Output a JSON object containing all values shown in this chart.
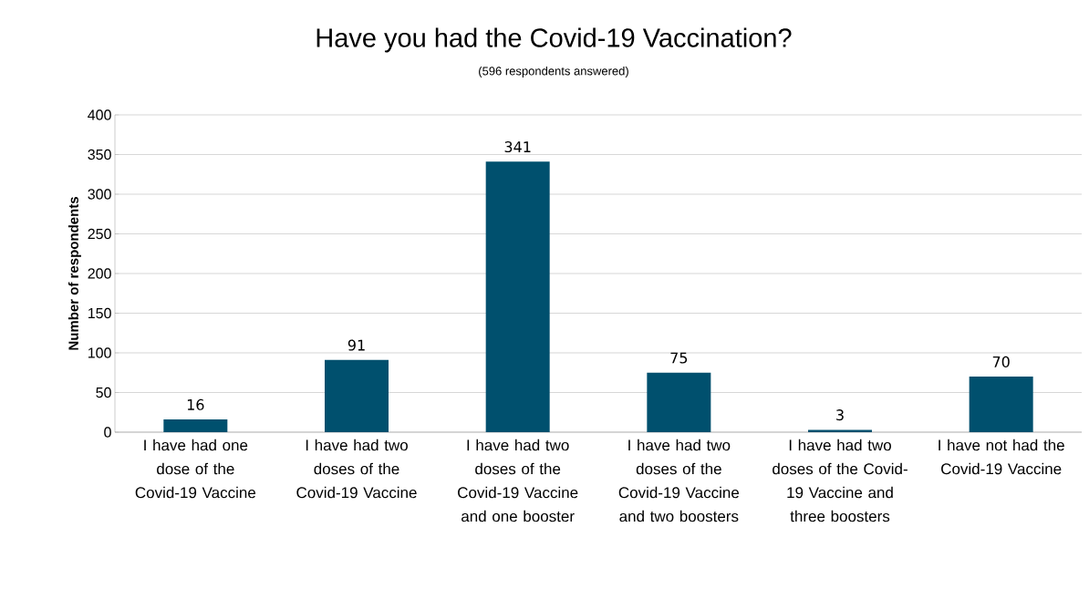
{
  "chart_data": {
    "type": "bar",
    "title": "Have you had the Covid-19 Vaccination?",
    "subtitle": "(596 respondents answered)",
    "ylabel": "Number of respondents",
    "categories": [
      "I have had one dose of the Covid-19 Vaccine",
      "I have had two doses of the Covid-19 Vaccine",
      "I have had two doses of the Covid-19 Vaccine and one booster",
      "I have had two doses of the Covid-19 Vaccine and two boosters",
      "I have had two doses of the Covid-19 Vaccine and three boosters",
      "I have not had the Covid-19 Vaccine"
    ],
    "values": [
      16,
      91,
      341,
      75,
      3,
      70
    ],
    "color": "#00506e",
    "ylim": [
      0,
      400
    ],
    "yticks": [
      0,
      50,
      100,
      150,
      200,
      250,
      300,
      350,
      400
    ],
    "grid": "y",
    "data_labels": true
  }
}
